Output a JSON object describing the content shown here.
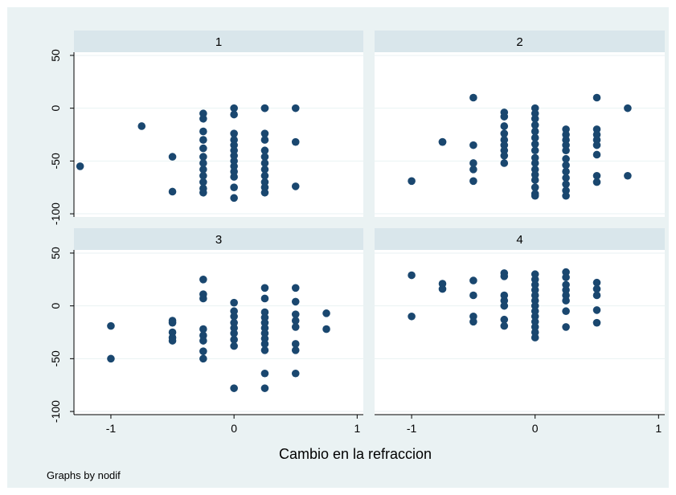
{
  "chart_data": {
    "type": "scatter",
    "xlabel": "Cambio en la refraccion",
    "note": "Graphs by nodif",
    "xlim": [
      -1.3,
      1.05
    ],
    "ylim": [
      -103,
      53
    ],
    "xticks": [
      -1,
      0,
      1
    ],
    "yticks": [
      50,
      0,
      -50,
      -100
    ],
    "grid": true,
    "colors": {
      "background": "#eaf2f3",
      "plot": "#ffffff",
      "header": "#d9e6eb",
      "marker": "#1a476f",
      "grid": "#eaf2f3"
    },
    "panels": [
      {
        "title": "1",
        "points": [
          [
            -1.25,
            -55
          ],
          [
            -0.75,
            -17
          ],
          [
            -0.5,
            -46
          ],
          [
            -0.5,
            -79
          ],
          [
            -0.25,
            -5
          ],
          [
            -0.25,
            -10
          ],
          [
            -0.25,
            -22
          ],
          [
            -0.25,
            -30
          ],
          [
            -0.25,
            -38
          ],
          [
            -0.25,
            -46
          ],
          [
            -0.25,
            -52
          ],
          [
            -0.25,
            -58
          ],
          [
            -0.25,
            -64
          ],
          [
            -0.25,
            -70
          ],
          [
            -0.25,
            -76
          ],
          [
            -0.25,
            -80
          ],
          [
            0,
            0
          ],
          [
            0,
            -6
          ],
          [
            0,
            -24
          ],
          [
            0,
            -30
          ],
          [
            0,
            -35
          ],
          [
            0,
            -40
          ],
          [
            0,
            -45
          ],
          [
            0,
            -50
          ],
          [
            0,
            -55
          ],
          [
            0,
            -60
          ],
          [
            0,
            -65
          ],
          [
            0,
            -75
          ],
          [
            0,
            -85
          ],
          [
            0.25,
            0
          ],
          [
            0.25,
            0
          ],
          [
            0.25,
            -24
          ],
          [
            0.25,
            -30
          ],
          [
            0.25,
            -40
          ],
          [
            0.25,
            -46
          ],
          [
            0.25,
            -52
          ],
          [
            0.25,
            -58
          ],
          [
            0.25,
            -64
          ],
          [
            0.25,
            -70
          ],
          [
            0.25,
            -75
          ],
          [
            0.25,
            -80
          ],
          [
            0.5,
            0
          ],
          [
            0.5,
            -32
          ],
          [
            0.5,
            -74
          ]
        ]
      },
      {
        "title": "2",
        "points": [
          [
            -1,
            -69
          ],
          [
            -0.75,
            -32
          ],
          [
            -0.75,
            -32
          ],
          [
            -0.5,
            10
          ],
          [
            -0.5,
            -35
          ],
          [
            -0.5,
            -52
          ],
          [
            -0.5,
            -58
          ],
          [
            -0.5,
            -69
          ],
          [
            -0.25,
            -4
          ],
          [
            -0.25,
            -8
          ],
          [
            -0.25,
            -17
          ],
          [
            -0.25,
            -24
          ],
          [
            -0.25,
            -30
          ],
          [
            -0.25,
            -35
          ],
          [
            -0.25,
            -40
          ],
          [
            -0.25,
            -45
          ],
          [
            -0.25,
            -52
          ],
          [
            0,
            0
          ],
          [
            0,
            -5
          ],
          [
            0,
            -10
          ],
          [
            0,
            -16
          ],
          [
            0,
            -22
          ],
          [
            0,
            -28
          ],
          [
            0,
            -34
          ],
          [
            0,
            -40
          ],
          [
            0,
            -47
          ],
          [
            0,
            -52
          ],
          [
            0,
            -58
          ],
          [
            0,
            -63
          ],
          [
            0,
            -68
          ],
          [
            0,
            -75
          ],
          [
            0,
            -81
          ],
          [
            0,
            -83
          ],
          [
            0.25,
            -20
          ],
          [
            0.25,
            -25
          ],
          [
            0.25,
            -30
          ],
          [
            0.25,
            -35
          ],
          [
            0.25,
            -40
          ],
          [
            0.25,
            -48
          ],
          [
            0.25,
            -54
          ],
          [
            0.25,
            -60
          ],
          [
            0.25,
            -66
          ],
          [
            0.25,
            -72
          ],
          [
            0.25,
            -78
          ],
          [
            0.25,
            -83
          ],
          [
            0.5,
            10
          ],
          [
            0.5,
            -20
          ],
          [
            0.5,
            -25
          ],
          [
            0.5,
            -30
          ],
          [
            0.5,
            -35
          ],
          [
            0.5,
            -44
          ],
          [
            0.5,
            -64
          ],
          [
            0.5,
            -70
          ],
          [
            0.75,
            0
          ],
          [
            0.75,
            -64
          ]
        ]
      },
      {
        "title": "3",
        "points": [
          [
            -1,
            -19
          ],
          [
            -1,
            -50
          ],
          [
            -0.5,
            -14
          ],
          [
            -0.5,
            -16
          ],
          [
            -0.5,
            -25
          ],
          [
            -0.5,
            -30
          ],
          [
            -0.5,
            -33
          ],
          [
            -0.25,
            25
          ],
          [
            -0.25,
            11
          ],
          [
            -0.25,
            7
          ],
          [
            -0.25,
            -22
          ],
          [
            -0.25,
            -28
          ],
          [
            -0.25,
            -33
          ],
          [
            -0.25,
            -43
          ],
          [
            -0.25,
            -50
          ],
          [
            0,
            3
          ],
          [
            0,
            -5
          ],
          [
            0,
            -10
          ],
          [
            0,
            -16
          ],
          [
            0,
            -21
          ],
          [
            0,
            -26
          ],
          [
            0,
            -32
          ],
          [
            0,
            -38
          ],
          [
            0,
            -78
          ],
          [
            0.25,
            17
          ],
          [
            0.25,
            7
          ],
          [
            0.25,
            -6
          ],
          [
            0.25,
            -11
          ],
          [
            0.25,
            -16
          ],
          [
            0.25,
            -21
          ],
          [
            0.25,
            -26
          ],
          [
            0.25,
            -31
          ],
          [
            0.25,
            -36
          ],
          [
            0.25,
            -42
          ],
          [
            0.25,
            -64
          ],
          [
            0.25,
            -78
          ],
          [
            0.5,
            17
          ],
          [
            0.5,
            4
          ],
          [
            0.5,
            -8
          ],
          [
            0.5,
            -14
          ],
          [
            0.5,
            -20
          ],
          [
            0.5,
            -36
          ],
          [
            0.5,
            -42
          ],
          [
            0.5,
            -64
          ],
          [
            0.75,
            -7
          ],
          [
            0.75,
            -22
          ]
        ]
      },
      {
        "title": "4",
        "points": [
          [
            -1,
            29
          ],
          [
            -1,
            -10
          ],
          [
            -0.75,
            21
          ],
          [
            -0.75,
            16
          ],
          [
            -0.5,
            24
          ],
          [
            -0.5,
            10
          ],
          [
            -0.5,
            -10
          ],
          [
            -0.5,
            -15
          ],
          [
            -0.25,
            31
          ],
          [
            -0.25,
            28
          ],
          [
            -0.25,
            10
          ],
          [
            -0.25,
            5
          ],
          [
            -0.25,
            0
          ],
          [
            -0.25,
            -13
          ],
          [
            -0.25,
            -19
          ],
          [
            0,
            30
          ],
          [
            0,
            25
          ],
          [
            0,
            20
          ],
          [
            0,
            15
          ],
          [
            0,
            10
          ],
          [
            0,
            5
          ],
          [
            0,
            0
          ],
          [
            0,
            -5
          ],
          [
            0,
            -10
          ],
          [
            0,
            -15
          ],
          [
            0,
            -20
          ],
          [
            0,
            -25
          ],
          [
            0,
            -30
          ],
          [
            0.25,
            32
          ],
          [
            0.25,
            27
          ],
          [
            0.25,
            20
          ],
          [
            0.25,
            15
          ],
          [
            0.25,
            10
          ],
          [
            0.25,
            5
          ],
          [
            0.25,
            -5
          ],
          [
            0.25,
            -20
          ],
          [
            0.5,
            22
          ],
          [
            0.5,
            16
          ],
          [
            0.5,
            10
          ],
          [
            0.5,
            -4
          ],
          [
            0.5,
            -16
          ]
        ]
      }
    ]
  }
}
